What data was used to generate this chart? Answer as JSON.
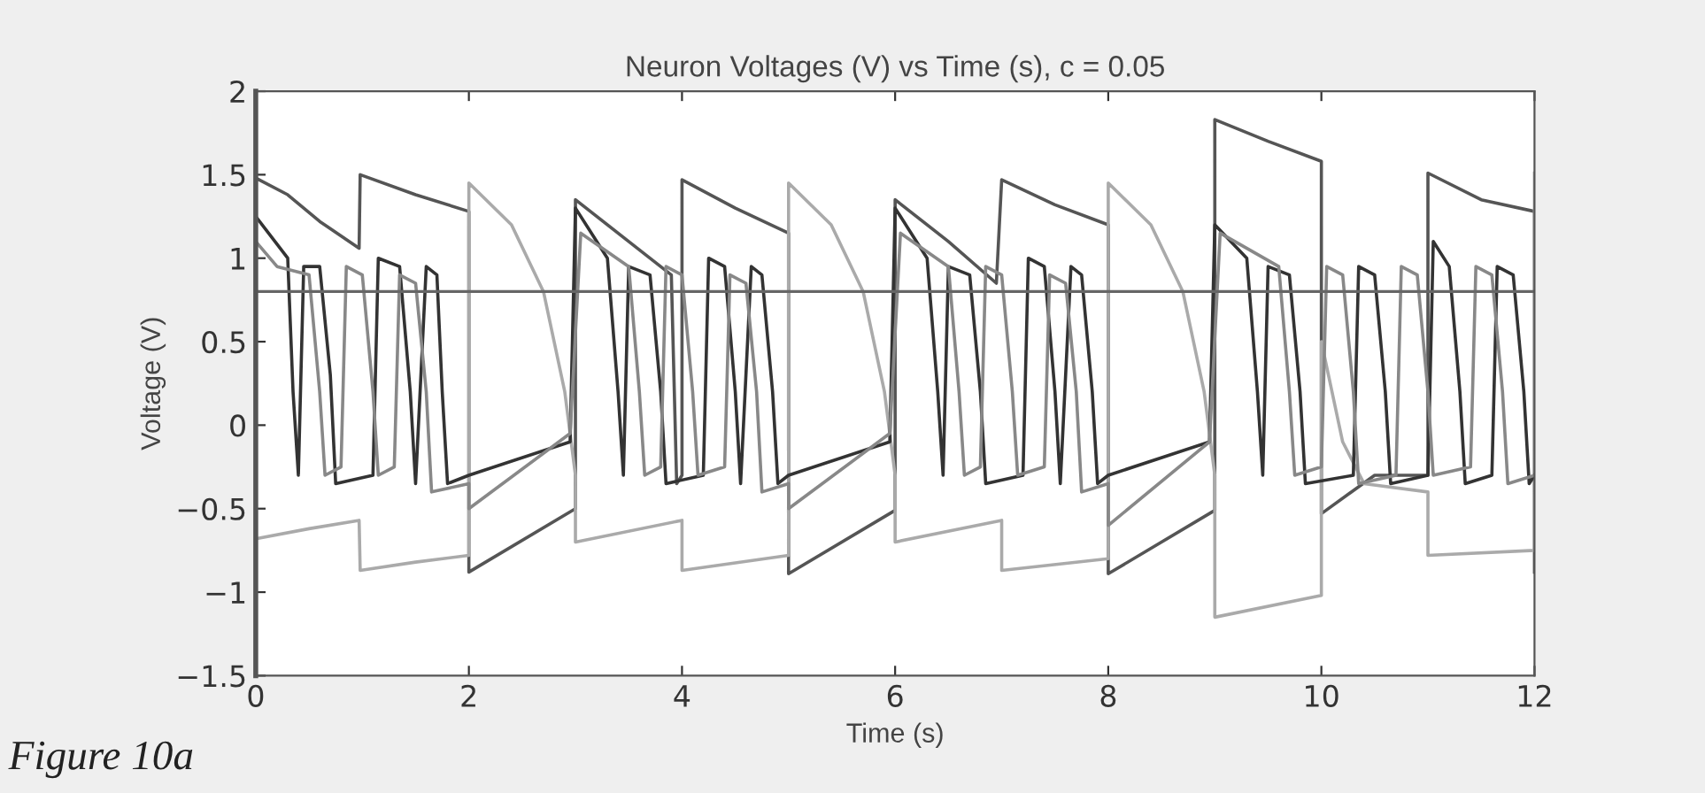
{
  "chart_data": {
    "type": "line",
    "title": "Neuron Voltages (V) vs Time (s), c = 0.05",
    "xlabel": "Time (s)",
    "ylabel": "Voltage (V)",
    "annotations": [
      "Figure 10a"
    ],
    "xlim": [
      0,
      12
    ],
    "xticks": [
      0,
      2,
      4,
      6,
      8,
      10,
      12
    ],
    "ylim": [
      -1.5,
      2
    ],
    "yticks": [
      {
        "value": -1.5,
        "label": "−1.5"
      },
      {
        "value": -1,
        "label": "−1"
      },
      {
        "value": -0.5,
        "label": "−0.5"
      },
      0,
      0.5,
      1,
      1.5,
      2
    ],
    "grid": false,
    "legend": false,
    "marker": "none",
    "line_style": "solid",
    "ref_lines": [
      {
        "axis": "y",
        "value": 0.8,
        "label": null,
        "color": "#666666"
      }
    ],
    "series": [
      {
        "color": "#555555",
        "x": [
          0,
          0.3,
          0.6,
          0.97,
          0.98,
          1.5,
          2.0,
          2.0,
          3.0,
          3.0,
          3.5,
          3.9,
          3.95,
          4.0,
          4.0,
          4.5,
          5.0,
          5.0,
          6.0,
          6.0,
          6.5,
          6.95,
          7.0,
          7.5,
          8.0,
          8.0,
          9.0,
          9.0,
          9.5,
          10.0,
          10.0,
          10.5,
          11.0,
          11.0,
          11.5,
          12.0,
          12.0
        ],
        "values": [
          1.48,
          1.38,
          1.22,
          1.06,
          1.5,
          1.38,
          1.28,
          -0.88,
          -0.5,
          1.35,
          1.1,
          0.9,
          -0.35,
          -0.3,
          1.47,
          1.3,
          1.15,
          -0.89,
          -0.51,
          1.35,
          1.1,
          0.85,
          1.47,
          1.32,
          1.2,
          -0.89,
          -0.51,
          1.83,
          1.7,
          1.58,
          -0.53,
          -0.3,
          -0.3,
          1.51,
          1.35,
          1.28,
          -0.88
        ]
      },
      {
        "color": "#aaaaaa",
        "x": [
          0,
          0.5,
          0.97,
          0.98,
          1.5,
          2.0,
          2.0,
          2.4,
          2.7,
          2.9,
          3.0,
          3.0,
          4.0,
          4.0,
          5.0,
          5.0,
          5.4,
          5.7,
          5.9,
          6.0,
          6.0,
          7.0,
          7.0,
          8.0,
          8.0,
          8.4,
          8.7,
          8.9,
          9.0,
          9.0,
          10.0,
          10.0,
          10.2,
          10.4,
          11.0,
          11.0,
          12.0,
          12.0
        ],
        "values": [
          -0.68,
          -0.62,
          -0.57,
          -0.87,
          -0.82,
          -0.78,
          1.45,
          1.2,
          0.8,
          0.2,
          -0.3,
          -0.7,
          -0.57,
          -0.87,
          -0.78,
          1.45,
          1.2,
          0.8,
          0.2,
          -0.3,
          -0.7,
          -0.57,
          -0.87,
          -0.8,
          1.45,
          1.2,
          0.8,
          0.2,
          -0.3,
          -1.15,
          -1.02,
          0.5,
          -0.1,
          -0.35,
          -0.4,
          -0.78,
          -0.75,
          1.51
        ]
      },
      {
        "color": "#333333",
        "x": [
          0,
          0.3,
          0.35,
          0.4,
          0.45,
          0.6,
          0.7,
          0.75,
          1.1,
          1.15,
          1.35,
          1.45,
          1.5,
          1.6,
          1.7,
          1.75,
          1.8,
          2.0,
          2.95,
          3.0,
          3.3,
          3.4,
          3.45,
          3.5,
          3.7,
          3.8,
          3.85,
          4.2,
          4.25,
          4.4,
          4.5,
          4.55,
          4.65,
          4.75,
          4.85,
          4.9,
          5.0,
          5.95,
          6.0,
          6.3,
          6.4,
          6.45,
          6.5,
          6.7,
          6.8,
          6.85,
          7.2,
          7.25,
          7.4,
          7.5,
          7.55,
          7.65,
          7.75,
          7.85,
          7.9,
          8.0,
          8.95,
          9.0,
          9.3,
          9.4,
          9.45,
          9.5,
          9.7,
          9.8,
          9.85,
          10.3,
          10.35,
          10.5,
          10.6,
          10.65,
          11.0,
          11.05,
          11.2,
          11.3,
          11.35,
          11.6,
          11.65,
          11.8,
          11.9,
          11.95,
          12.0
        ],
        "values": [
          1.25,
          1.0,
          0.2,
          -0.3,
          0.95,
          0.95,
          0.3,
          -0.35,
          -0.3,
          1.0,
          0.95,
          0.2,
          -0.35,
          0.95,
          0.9,
          0.2,
          -0.35,
          -0.3,
          -0.1,
          1.3,
          1.0,
          0.2,
          -0.3,
          0.95,
          0.9,
          0.2,
          -0.35,
          -0.3,
          1.0,
          0.95,
          0.2,
          -0.35,
          0.95,
          0.9,
          0.2,
          -0.35,
          -0.3,
          -0.1,
          1.3,
          1.0,
          0.2,
          -0.3,
          0.95,
          0.9,
          0.2,
          -0.35,
          -0.3,
          1.0,
          0.95,
          0.2,
          -0.35,
          0.95,
          0.9,
          0.2,
          -0.35,
          -0.3,
          -0.1,
          1.2,
          1.0,
          0.2,
          -0.3,
          0.95,
          0.9,
          0.2,
          -0.35,
          -0.3,
          0.95,
          0.9,
          0.2,
          -0.35,
          -0.3,
          1.1,
          0.95,
          0.2,
          -0.35,
          -0.3,
          0.95,
          0.9,
          0.2,
          -0.35,
          -0.3
        ]
      },
      {
        "color": "#888888",
        "x": [
          0,
          0.2,
          0.5,
          0.6,
          0.65,
          0.8,
          0.85,
          1.0,
          1.1,
          1.15,
          1.3,
          1.35,
          1.5,
          1.6,
          1.65,
          2.0,
          2.0,
          2.95,
          3.05,
          3.5,
          3.6,
          3.65,
          3.8,
          3.85,
          4.0,
          4.1,
          4.15,
          4.4,
          4.45,
          4.6,
          4.7,
          4.75,
          5.0,
          5.0,
          5.95,
          6.05,
          6.5,
          6.6,
          6.65,
          6.8,
          6.85,
          7.0,
          7.1,
          7.15,
          7.4,
          7.45,
          7.6,
          7.7,
          7.75,
          8.0,
          8.0,
          8.95,
          9.05,
          9.6,
          9.7,
          9.75,
          10.0,
          10.05,
          10.2,
          10.3,
          10.35,
          10.7,
          10.75,
          10.9,
          11.0,
          11.05,
          11.4,
          11.45,
          11.6,
          11.7,
          11.75,
          12.0
        ],
        "values": [
          1.1,
          0.95,
          0.9,
          0.2,
          -0.3,
          -0.25,
          0.95,
          0.9,
          0.2,
          -0.3,
          -0.25,
          0.9,
          0.85,
          0.2,
          -0.4,
          -0.35,
          -0.5,
          -0.05,
          1.15,
          0.95,
          0.2,
          -0.3,
          -0.25,
          0.95,
          0.9,
          0.2,
          -0.3,
          -0.25,
          0.9,
          0.85,
          0.2,
          -0.4,
          -0.35,
          -0.5,
          -0.05,
          1.15,
          0.95,
          0.2,
          -0.3,
          -0.25,
          0.95,
          0.9,
          0.2,
          -0.3,
          -0.25,
          0.9,
          0.85,
          0.2,
          -0.4,
          -0.35,
          -0.6,
          -0.1,
          1.15,
          0.95,
          0.2,
          -0.3,
          -0.25,
          0.95,
          0.9,
          0.2,
          -0.35,
          -0.3,
          0.95,
          0.9,
          0.2,
          -0.3,
          -0.25,
          0.95,
          0.9,
          0.2,
          -0.35,
          -0.3
        ]
      }
    ]
  }
}
